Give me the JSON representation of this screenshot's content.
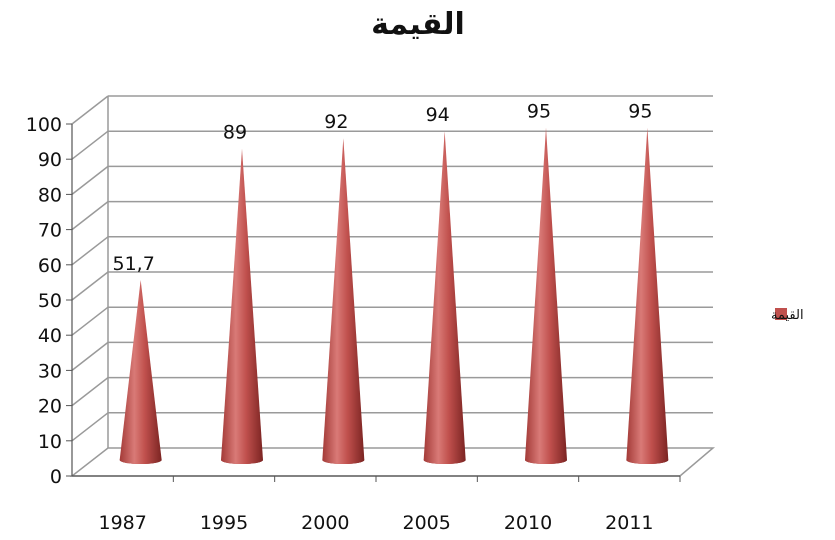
{
  "chart_data": {
    "type": "bar",
    "style": "3d-cone",
    "title": "القيمة",
    "categories": [
      "1987",
      "1995",
      "2000",
      "2005",
      "2010",
      "2011"
    ],
    "series": [
      {
        "name": "القيمة",
        "values": [
          51.7,
          89,
          92,
          94,
          95,
          95
        ]
      }
    ],
    "data_labels": [
      "51,7",
      "89",
      "92",
      "94",
      "95",
      "95"
    ],
    "y_ticks": [
      "0",
      "10",
      "20",
      "30",
      "40",
      "50",
      "60",
      "70",
      "80",
      "90",
      "100"
    ],
    "ylim": [
      0,
      100
    ],
    "grid": true,
    "legend_position": "right",
    "colors": {
      "series": "#c0504d",
      "series_dark": "#7b2422",
      "grid": "#9a9a9a",
      "axis": "#555555"
    }
  }
}
